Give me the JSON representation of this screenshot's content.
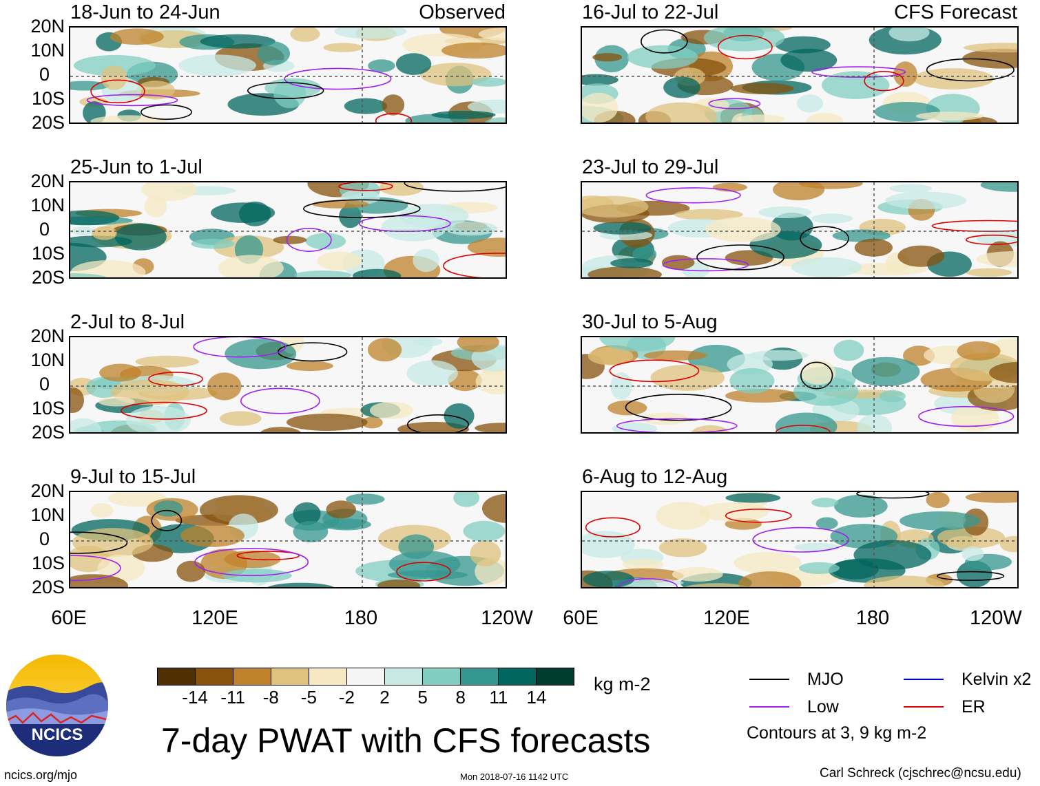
{
  "title": "7-day PWAT with CFS forecasts",
  "units": "kg m-2",
  "panels_left": [
    {
      "period": "18-Jun to 24-Jun",
      "tag": "Observed"
    },
    {
      "period": "25-Jun to 1-Jul",
      "tag": ""
    },
    {
      "period": "2-Jul to 8-Jul",
      "tag": ""
    },
    {
      "period": "9-Jul to 15-Jul",
      "tag": ""
    }
  ],
  "panels_right": [
    {
      "period": "16-Jul to 22-Jul",
      "tag": "CFS Forecast"
    },
    {
      "period": "23-Jul to 29-Jul",
      "tag": ""
    },
    {
      "period": "30-Jul to 5-Aug",
      "tag": ""
    },
    {
      "period": "6-Aug to 12-Aug",
      "tag": ""
    }
  ],
  "lat_labels": [
    "20N",
    "10N",
    "0",
    "10S",
    "20S"
  ],
  "lon_labels": [
    "60E",
    "120E",
    "180",
    "120W"
  ],
  "colorbar": {
    "labels": [
      "-14",
      "-11",
      "-8",
      "-5",
      "-2",
      "2",
      "5",
      "8",
      "11",
      "14"
    ],
    "colors": [
      "#4f3004",
      "#86520c",
      "#bf822b",
      "#dfc27d",
      "#f6e8c3",
      "#f5f5f5",
      "#c7eae5",
      "#80cdc1",
      "#35978f",
      "#01665e",
      "#003c30"
    ]
  },
  "legend": {
    "items": [
      {
        "label": "MJO",
        "color": "#000000"
      },
      {
        "label": "Kelvin x2",
        "color": "#0000dd"
      },
      {
        "label": "Low",
        "color": "#a020f0"
      },
      {
        "label": "ER",
        "color": "#dd0000"
      }
    ],
    "note": "Contours at 3, 9 kg m-2"
  },
  "logo": {
    "text": "NCICS"
  },
  "footer": {
    "url": "ncics.org/mjo",
    "timestamp": "Mon 2018-07-16 1142 UTC",
    "credit": "Carl Schreck (cjschrec@ncsu.edu)"
  }
}
